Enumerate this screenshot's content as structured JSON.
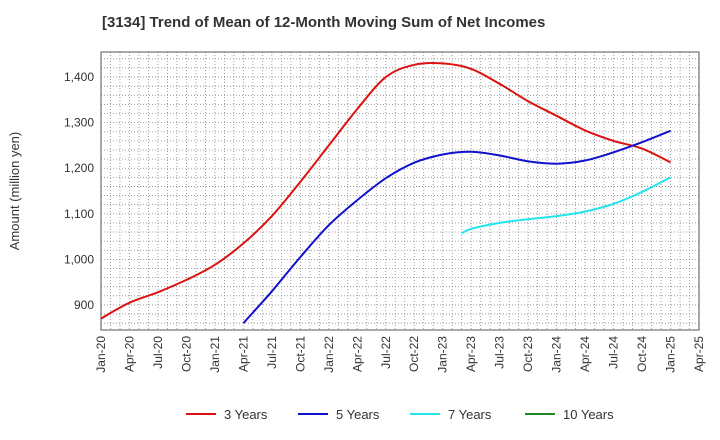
{
  "chart_data": {
    "type": "line",
    "title": "[3134]  Trend of Mean of 12-Month Moving Sum of Net Incomes",
    "xlabel": "",
    "ylabel": "Amount (million yen)",
    "ylim": [
      845,
      1455
    ],
    "yticks": [
      900,
      1000,
      1100,
      1200,
      1300,
      1400
    ],
    "ytick_labels": [
      "900",
      "1,000",
      "1,100",
      "1,200",
      "1,300",
      "1,400"
    ],
    "xticks": [
      "Jan-20",
      "Apr-20",
      "Jul-20",
      "Oct-20",
      "Jan-21",
      "Apr-21",
      "Jul-21",
      "Oct-21",
      "Jan-22",
      "Apr-22",
      "Jul-22",
      "Oct-22",
      "Jan-23",
      "Apr-23",
      "Jul-23",
      "Oct-23",
      "Jan-24",
      "Apr-24",
      "Jul-24",
      "Oct-24",
      "Jan-25",
      "Apr-25"
    ],
    "grid": true,
    "legend": "bottom",
    "series": [
      {
        "name": "3 Years",
        "color": "#dd1111",
        "points": [
          [
            "Jan-20",
            870
          ],
          [
            "Apr-20",
            905
          ],
          [
            "Jul-20",
            928
          ],
          [
            "Oct-20",
            955
          ],
          [
            "Jan-21",
            988
          ],
          [
            "Apr-21",
            1035
          ],
          [
            "Jul-21",
            1095
          ],
          [
            "Oct-21",
            1170
          ],
          [
            "Jan-22",
            1250
          ],
          [
            "Apr-22",
            1330
          ],
          [
            "Jul-22",
            1400
          ],
          [
            "Oct-22",
            1427
          ],
          [
            "Jan-23",
            1430
          ],
          [
            "Apr-23",
            1418
          ],
          [
            "Jul-23",
            1385
          ],
          [
            "Oct-23",
            1347
          ],
          [
            "Jan-24",
            1315
          ],
          [
            "Apr-24",
            1283
          ],
          [
            "Jul-24",
            1260
          ],
          [
            "Oct-24",
            1243
          ],
          [
            "Jan-25",
            1213
          ]
        ]
      },
      {
        "name": "5 Years",
        "color": "#1111cc",
        "points": [
          [
            "Apr-21",
            860
          ],
          [
            "Jul-21",
            930
          ],
          [
            "Oct-21",
            1005
          ],
          [
            "Jan-22",
            1075
          ],
          [
            "Apr-22",
            1130
          ],
          [
            "Jul-22",
            1178
          ],
          [
            "Oct-22",
            1212
          ],
          [
            "Jan-23",
            1230
          ],
          [
            "Apr-23",
            1236
          ],
          [
            "Jul-23",
            1228
          ],
          [
            "Oct-23",
            1215
          ],
          [
            "Jan-24",
            1210
          ],
          [
            "Apr-24",
            1217
          ],
          [
            "Jul-24",
            1235
          ],
          [
            "Oct-24",
            1257
          ],
          [
            "Jan-25",
            1282
          ]
        ]
      },
      {
        "name": "7 Years",
        "color": "#22e5ee",
        "points": [
          [
            "Mar-23",
            1057
          ],
          [
            "Apr-23",
            1067
          ],
          [
            "Jul-23",
            1080
          ],
          [
            "Oct-23",
            1088
          ],
          [
            "Jan-24",
            1095
          ],
          [
            "Apr-24",
            1105
          ],
          [
            "Jul-24",
            1122
          ],
          [
            "Oct-24",
            1148
          ],
          [
            "Jan-25",
            1180
          ]
        ]
      },
      {
        "name": "10 Years",
        "color": "#228822",
        "points": []
      }
    ]
  }
}
